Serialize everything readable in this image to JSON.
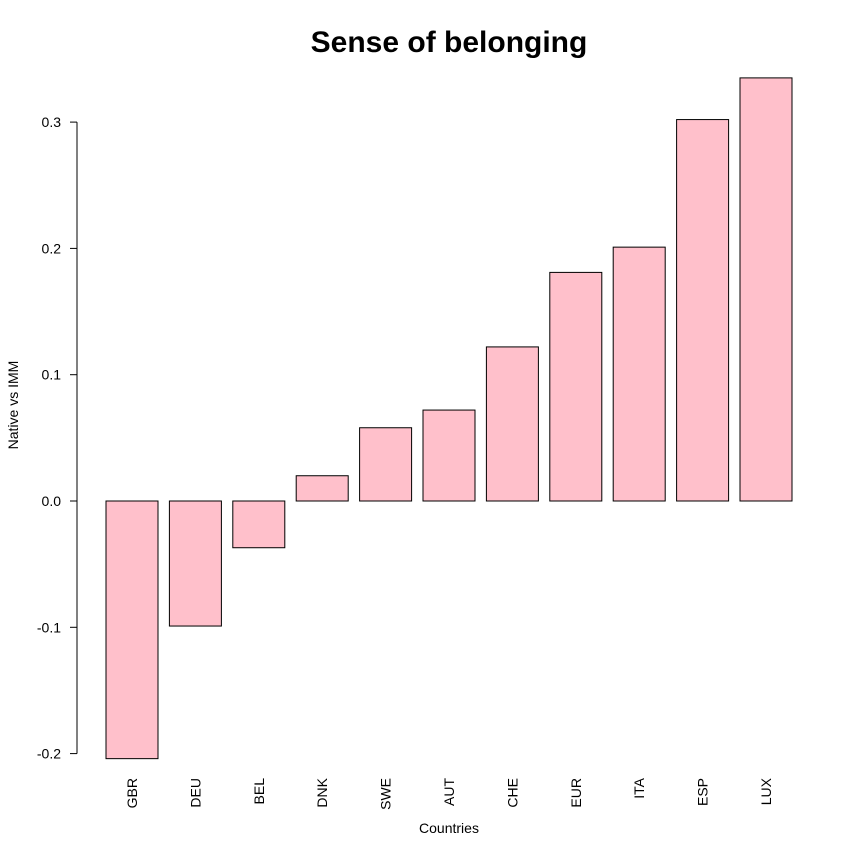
{
  "chart_data": {
    "type": "bar",
    "title": "Sense of belonging",
    "xlabel": "Countries",
    "ylabel": "Native vs IMM",
    "categories": [
      "GBR",
      "DEU",
      "BEL",
      "DNK",
      "SWE",
      "AUT",
      "CHE",
      "EUR",
      "ITA",
      "ESP",
      "LUX"
    ],
    "values": [
      -0.204,
      -0.099,
      -0.037,
      0.02,
      0.058,
      0.072,
      0.122,
      0.181,
      0.201,
      0.302,
      0.335
    ],
    "ylim": [
      -0.2,
      0.3
    ],
    "yticks": [
      -0.2,
      -0.1,
      0.0,
      0.1,
      0.2,
      0.3
    ],
    "ytick_labels": [
      "-0.2",
      "-0.1",
      "0.0",
      "0.1",
      "0.2",
      "0.3"
    ],
    "grid": false,
    "bar_color": "#ffc0cb",
    "edge_color": "#000000"
  }
}
